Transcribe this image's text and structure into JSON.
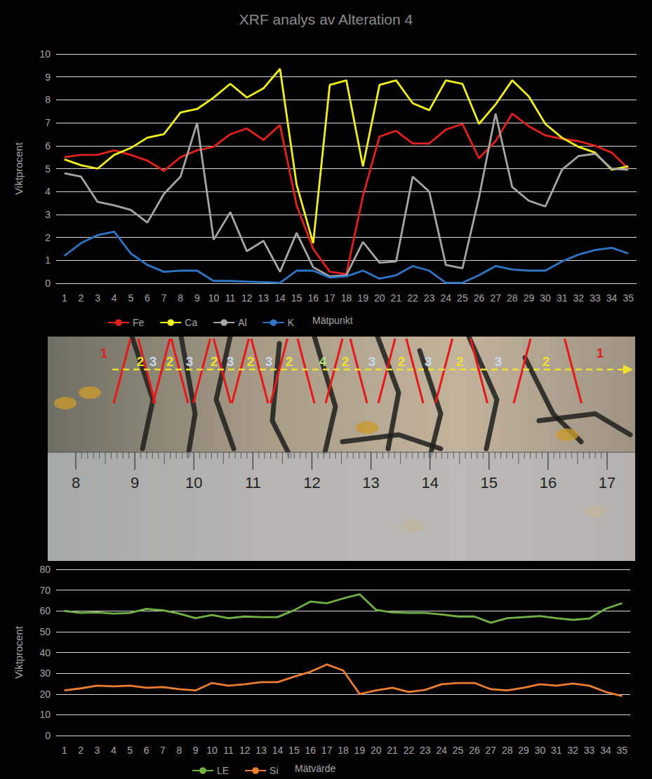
{
  "chart_data": [
    {
      "type": "line",
      "title": "XRF analys av Alteration 4",
      "ylabel": "Viktprocent",
      "xlabel": "Mätpunkt",
      "categories": [
        1,
        2,
        3,
        4,
        5,
        6,
        7,
        8,
        9,
        10,
        11,
        12,
        13,
        14,
        15,
        16,
        17,
        18,
        19,
        20,
        21,
        22,
        23,
        24,
        25,
        26,
        27,
        28,
        29,
        30,
        31,
        32,
        33,
        34,
        35
      ],
      "series": [
        {
          "name": "Fe",
          "color": "#e3211c",
          "values": [
            5.5,
            5.6,
            5.6,
            5.8,
            5.6,
            5.35,
            4.9,
            5.5,
            5.8,
            5.95,
            6.5,
            6.75,
            6.25,
            6.9,
            3.4,
            1.5,
            0.5,
            0.4,
            3.8,
            6.4,
            6.65,
            6.1,
            6.1,
            6.7,
            6.95,
            5.45,
            6.2,
            7.4,
            6.85,
            6.45,
            6.3,
            6.2,
            6.0,
            5.7,
            5.0
          ]
        },
        {
          "name": "Ca",
          "color": "#f2f21a",
          "values": [
            5.4,
            5.15,
            5.0,
            5.6,
            5.9,
            6.35,
            6.5,
            7.45,
            7.6,
            8.1,
            8.7,
            8.1,
            8.5,
            9.35,
            4.3,
            1.75,
            8.65,
            8.85,
            5.1,
            8.65,
            8.85,
            7.85,
            7.55,
            8.85,
            8.7,
            6.95,
            7.8,
            8.85,
            8.15,
            6.95,
            6.35,
            5.95,
            5.7,
            4.95,
            5.1
          ]
        },
        {
          "name": "Al",
          "color": "#a6a6a6",
          "values": [
            4.8,
            4.65,
            3.55,
            3.4,
            3.2,
            2.65,
            3.9,
            4.65,
            7.0,
            1.9,
            3.1,
            1.4,
            1.85,
            0.5,
            2.2,
            0.7,
            0.3,
            0.35,
            1.8,
            0.9,
            0.95,
            4.65,
            4.0,
            0.8,
            0.65,
            3.75,
            7.4,
            4.2,
            3.6,
            3.35,
            4.95,
            5.55,
            5.65,
            5.0,
            4.95
          ]
        },
        {
          "name": "K",
          "color": "#2e75c6",
          "values": [
            1.2,
            1.75,
            2.1,
            2.25,
            1.3,
            0.8,
            0.5,
            0.55,
            0.55,
            0.1,
            0.1,
            0.07,
            0.05,
            0.02,
            0.55,
            0.55,
            0.25,
            0.3,
            0.55,
            0.2,
            0.35,
            0.75,
            0.55,
            0.02,
            0.02,
            0.35,
            0.75,
            0.6,
            0.55,
            0.55,
            0.95,
            1.25,
            1.45,
            1.55,
            1.3
          ]
        }
      ],
      "ylim": [
        0,
        10
      ],
      "yticks": [
        0,
        1,
        2,
        3,
        4,
        5,
        6,
        7,
        8,
        9,
        10
      ],
      "grid": true,
      "legend": "bottom",
      "marker": "none"
    },
    {
      "type": "line",
      "ylabel": "Viktprocent",
      "xlabel": "Mätvärde",
      "categories": [
        1,
        2,
        3,
        4,
        5,
        6,
        7,
        8,
        9,
        10,
        11,
        12,
        13,
        14,
        15,
        16,
        17,
        18,
        19,
        20,
        21,
        22,
        23,
        24,
        25,
        26,
        27,
        28,
        29,
        30,
        31,
        32,
        33,
        34,
        35
      ],
      "series": [
        {
          "name": "LE",
          "color": "#70b244",
          "values": [
            60,
            59,
            59.3,
            58.7,
            59,
            61,
            60.3,
            58.7,
            56.5,
            58,
            56.5,
            57.3,
            57,
            57,
            60.3,
            64.5,
            63.7,
            66,
            68,
            60.5,
            59.3,
            59,
            59,
            58.3,
            57.3,
            57.3,
            54.3,
            56.5,
            57,
            57.5,
            56.5,
            55.7,
            56.3,
            61,
            63.7
          ]
        },
        {
          "name": "Si",
          "color": "#ed7d31",
          "values": [
            21.7,
            22.7,
            24,
            23.7,
            24,
            23,
            23.3,
            22.3,
            21.7,
            25.3,
            24,
            24.7,
            25.7,
            25.7,
            28.3,
            30.7,
            34.2,
            31.3,
            20,
            21.7,
            23,
            21,
            22,
            24.7,
            25.3,
            25.3,
            22.3,
            21.7,
            23,
            24.7,
            24,
            25,
            24,
            21,
            19
          ]
        }
      ],
      "ylim": [
        0,
        80
      ],
      "yticks": [
        0,
        10,
        20,
        30,
        40,
        50,
        60,
        70,
        80
      ],
      "grid": true,
      "legend": "bottom",
      "marker": "none"
    }
  ],
  "photo": {
    "zone_labels": [
      1,
      2,
      3,
      2,
      3,
      2,
      3,
      2,
      3,
      2,
      4,
      2,
      3,
      2,
      3,
      2,
      3,
      2,
      1
    ],
    "ruler_labels": [
      8,
      9,
      10,
      11,
      12,
      13,
      14,
      15,
      16,
      17
    ]
  }
}
